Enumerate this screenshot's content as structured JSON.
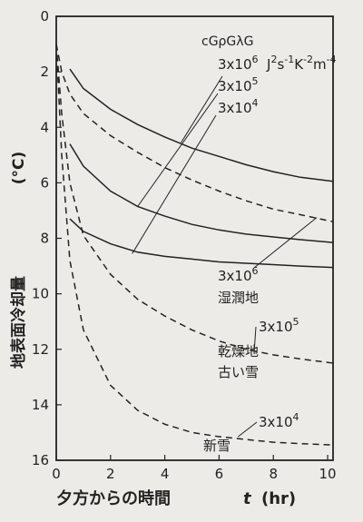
{
  "chart_data": {
    "type": "line",
    "title": "",
    "xlabel": "夕方からの時間",
    "xlabel_var": "t",
    "xlabel_unit": "(hr)",
    "ylabel": "地表面冷却量",
    "ylabel_unit": "(°C)",
    "xlim": [
      0,
      10.2
    ],
    "ylim": [
      0,
      16
    ],
    "y_inverted": true,
    "grid": false,
    "x_ticks": [
      0,
      2,
      4,
      6,
      8,
      10
    ],
    "y_ticks": [
      0,
      2,
      4,
      6,
      8,
      10,
      12,
      14,
      16
    ],
    "header": "cGρGλG",
    "series": [
      {
        "name": "3x10^6 J^2s^-1K^-2m^-4",
        "style": "solid",
        "x": [
          0.5,
          1,
          2,
          3,
          4,
          5,
          6,
          7,
          8,
          9,
          10.2
        ],
        "y": [
          1.9,
          2.6,
          3.35,
          3.9,
          4.35,
          4.75,
          5.05,
          5.35,
          5.6,
          5.8,
          5.95
        ]
      },
      {
        "name": "3x10^5 solid",
        "style": "solid",
        "x": [
          0.5,
          1,
          2,
          3,
          4,
          5,
          6,
          7,
          8,
          9,
          10.2
        ],
        "y": [
          4.6,
          5.4,
          6.3,
          6.85,
          7.2,
          7.5,
          7.7,
          7.85,
          7.95,
          8.05,
          8.15
        ]
      },
      {
        "name": "3x10^4 solid",
        "style": "solid",
        "x": [
          0.5,
          1,
          2,
          3,
          4,
          5,
          6,
          7,
          8,
          9,
          10.2
        ],
        "y": [
          7.3,
          7.75,
          8.2,
          8.5,
          8.65,
          8.75,
          8.85,
          8.9,
          8.95,
          9.0,
          9.05
        ]
      },
      {
        "name": "3x10^6 湿潤地",
        "style": "dashed",
        "x": [
          0,
          0.2,
          0.5,
          1,
          2,
          3,
          4,
          5,
          6,
          7,
          8,
          9,
          10.2
        ],
        "y": [
          1.0,
          2.0,
          2.8,
          3.5,
          4.3,
          4.9,
          5.45,
          5.9,
          6.3,
          6.65,
          6.95,
          7.15,
          7.4
        ]
      },
      {
        "name": "3x10^5 乾燥地 古い雪",
        "style": "dashed",
        "x": [
          0,
          0.2,
          0.5,
          1,
          2,
          3,
          4,
          5,
          6,
          7,
          8,
          9,
          10.2
        ],
        "y": [
          1.0,
          3.5,
          6.0,
          7.9,
          9.3,
          10.2,
          10.8,
          11.3,
          11.7,
          12.0,
          12.2,
          12.35,
          12.5
        ]
      },
      {
        "name": "3x10^4 新雪",
        "style": "dashed",
        "x": [
          0,
          0.2,
          0.5,
          1,
          2,
          3,
          4,
          5,
          6,
          7,
          8,
          9,
          10.2
        ],
        "y": [
          1.0,
          5.0,
          8.8,
          11.3,
          13.3,
          14.2,
          14.7,
          15.0,
          15.15,
          15.25,
          15.35,
          15.4,
          15.45
        ]
      }
    ],
    "legend": {
      "solid_labels": [
        "3x10",
        "3x10",
        "3x10"
      ],
      "solid_exps": [
        "6",
        "5",
        "4"
      ],
      "unit_label": "J s K m",
      "unit_exps": [
        "2",
        "-1",
        "-2",
        "-4"
      ],
      "dashed_labels": [
        "3x10",
        "3x10",
        "3x10"
      ],
      "dashed_exps": [
        "6",
        "5",
        "4"
      ],
      "dashed_names": [
        "湿潤地",
        "乾燥地",
        "古い雪",
        "新雪"
      ]
    }
  }
}
